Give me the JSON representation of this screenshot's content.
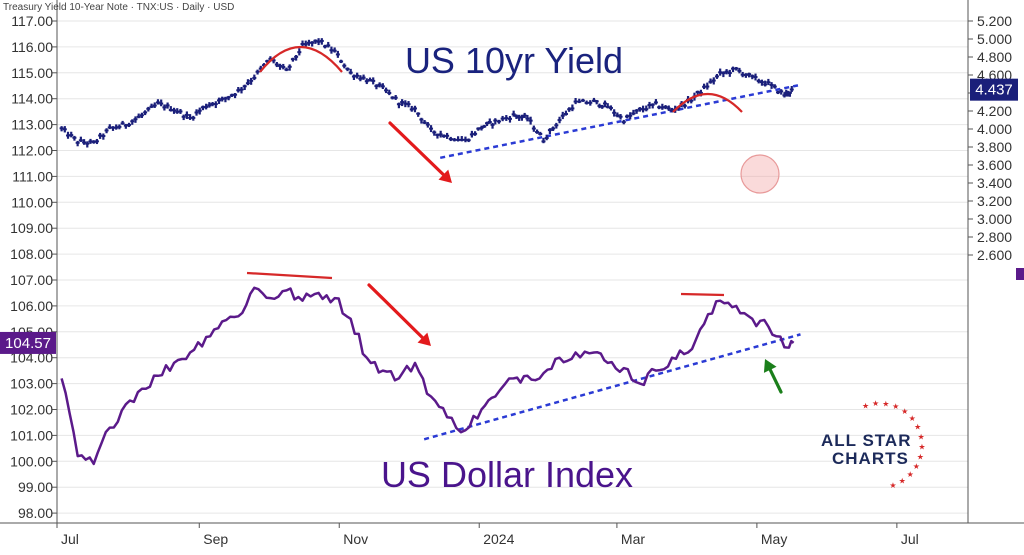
{
  "header": "Treasury Yield 10-Year Note · TNX:US · Daily · USD",
  "titles": {
    "yield": "US 10yr Yield",
    "dollar": "US Dollar Index"
  },
  "logo": {
    "line1": "ALL STAR",
    "line2": "CHARTS"
  },
  "colors": {
    "yield": "#1a1f7a",
    "dollar": "#5b1a8a",
    "title_yield": "#1a237e",
    "title_dollar": "#4a148c",
    "arrow_red": "#e31a1c",
    "arrow_green": "#1b7f1b",
    "trend": "#2b3bd4",
    "arc": "#d62828",
    "dollar_badge": "#5b1a8a",
    "yield_badge": "#1a1f7a",
    "logo_navy": "#1c2a5a",
    "logo_red": "#d62828"
  },
  "chart_data": {
    "type": "line",
    "x_tick_labels": [
      "Jul",
      "Sep",
      "Nov",
      "2024",
      "Mar",
      "May",
      "Jul"
    ],
    "left_axis": {
      "label": "US Dollar Index",
      "ticks": [
        "117.00",
        "116.00",
        "115.00",
        "114.00",
        "113.00",
        "112.00",
        "111.00",
        "110.00",
        "109.00",
        "108.00",
        "107.00",
        "106.00",
        "105.00",
        "104.00",
        "103.00",
        "102.00",
        "101.00",
        "100.00",
        "99.00",
        "98.00"
      ],
      "ylim": [
        98.0,
        117.0
      ]
    },
    "right_axis": {
      "label": "US 10yr Yield",
      "ticks": [
        "5.200",
        "5.000",
        "4.800",
        "4.600",
        "4.400",
        "4.200",
        "4.000",
        "3.800",
        "3.600",
        "3.400",
        "3.200",
        "3.000",
        "2.800",
        "2.600"
      ],
      "ylim": [
        2.4,
        5.2
      ]
    },
    "last_values": {
      "dollar": "104.57",
      "yield": "4.437"
    },
    "series": [
      {
        "name": "US 10yr Yield",
        "axis": "right",
        "style": "ohlc",
        "x": [
          "2023-07-03",
          "2023-07-10",
          "2023-07-17",
          "2023-07-24",
          "2023-07-31",
          "2023-08-07",
          "2023-08-14",
          "2023-08-21",
          "2023-08-28",
          "2023-09-04",
          "2023-09-11",
          "2023-09-18",
          "2023-09-25",
          "2023-10-02",
          "2023-10-09",
          "2023-10-16",
          "2023-10-23",
          "2023-10-30",
          "2023-11-06",
          "2023-11-13",
          "2023-11-20",
          "2023-11-27",
          "2023-12-04",
          "2023-12-11",
          "2023-12-18",
          "2023-12-26",
          "2024-01-02",
          "2024-01-08",
          "2024-01-16",
          "2024-01-22",
          "2024-01-29",
          "2024-02-05",
          "2024-02-12",
          "2024-02-20",
          "2024-02-26",
          "2024-03-04",
          "2024-03-11",
          "2024-03-18",
          "2024-03-25",
          "2024-04-01",
          "2024-04-08",
          "2024-04-15",
          "2024-04-22",
          "2024-04-29",
          "2024-05-06",
          "2024-05-13",
          "2024-05-17"
        ],
        "values": [
          4.0,
          3.86,
          3.84,
          4.0,
          4.05,
          4.15,
          4.28,
          4.22,
          4.12,
          4.26,
          4.32,
          4.42,
          4.58,
          4.78,
          4.64,
          4.92,
          4.98,
          4.86,
          4.62,
          4.55,
          4.45,
          4.3,
          4.22,
          3.98,
          3.92,
          3.87,
          4.02,
          4.08,
          4.15,
          4.12,
          3.88,
          4.1,
          4.29,
          4.3,
          4.25,
          4.1,
          4.21,
          4.27,
          4.21,
          4.3,
          4.45,
          4.61,
          4.66,
          4.57,
          4.5,
          4.38,
          4.44
        ]
      },
      {
        "name": "US Dollar Index",
        "axis": "left",
        "style": "line",
        "x": [
          "2023-07-03",
          "2023-07-10",
          "2023-07-17",
          "2023-07-24",
          "2023-07-31",
          "2023-08-07",
          "2023-08-14",
          "2023-08-21",
          "2023-08-28",
          "2023-09-04",
          "2023-09-11",
          "2023-09-18",
          "2023-09-25",
          "2023-10-02",
          "2023-10-09",
          "2023-10-16",
          "2023-10-23",
          "2023-10-30",
          "2023-11-06",
          "2023-11-13",
          "2023-11-20",
          "2023-11-27",
          "2023-12-04",
          "2023-12-11",
          "2023-12-18",
          "2023-12-26",
          "2024-01-02",
          "2024-01-08",
          "2024-01-16",
          "2024-01-22",
          "2024-01-29",
          "2024-02-05",
          "2024-02-12",
          "2024-02-20",
          "2024-02-26",
          "2024-03-04",
          "2024-03-11",
          "2024-03-18",
          "2024-03-25",
          "2024-04-01",
          "2024-04-08",
          "2024-04-15",
          "2024-04-22",
          "2024-04-29",
          "2024-05-06",
          "2024-05-13",
          "2024-05-17"
        ],
        "values": [
          103.2,
          100.2,
          99.9,
          101.3,
          102.2,
          102.8,
          103.3,
          103.8,
          104.2,
          104.8,
          105.4,
          105.6,
          106.7,
          106.3,
          106.6,
          106.2,
          106.5,
          106.3,
          105.5,
          104.0,
          103.5,
          103.2,
          103.8,
          102.5,
          101.7,
          101.2,
          102.0,
          102.5,
          103.2,
          103.3,
          103.4,
          104.0,
          104.2,
          104.2,
          103.8,
          103.6,
          103.0,
          103.5,
          104.0,
          104.2,
          105.3,
          106.2,
          106.0,
          105.5,
          105.2,
          104.4,
          104.57
        ]
      }
    ],
    "annotations": {
      "yield_trendline": {
        "from": [
          "2023-12-15",
          3.68
        ],
        "to": [
          "2024-05-20",
          4.49
        ]
      },
      "dollar_trendline": {
        "from": [
          "2023-12-08",
          100.85
        ],
        "to": [
          "2024-05-20",
          104.9
        ]
      }
    }
  }
}
